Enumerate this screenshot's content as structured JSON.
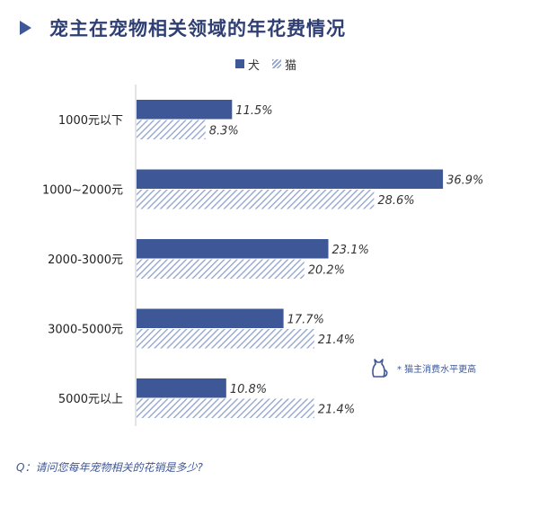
{
  "title": "宠主在宠物相关领域的年花费情况",
  "legend": {
    "dog": "犬",
    "cat": "猫"
  },
  "note": "* 猫主消费水平更高",
  "question": "Q：请问您每年宠物相关的花销是多少?",
  "colors": {
    "dog": "#3e5797",
    "cat_stripe": "#8fa1cd",
    "text": "#333333"
  },
  "chart_data": {
    "type": "bar",
    "orientation": "horizontal",
    "categories": [
      "1000元以下",
      "1000~2000元",
      "2000-3000元",
      "3000-5000元",
      "5000元以上"
    ],
    "series": [
      {
        "name": "犬",
        "values": [
          11.5,
          36.9,
          23.1,
          17.7,
          10.8
        ],
        "labels": [
          "11.5%",
          "36.9%",
          "23.1%",
          "17.7%",
          "10.8%"
        ]
      },
      {
        "name": "猫",
        "values": [
          8.3,
          28.6,
          20.2,
          21.4,
          21.4
        ],
        "labels": [
          "8.3%",
          "28.6%",
          "20.2%",
          "21.4%",
          "21.4%"
        ]
      }
    ],
    "xlim": [
      0,
      37
    ],
    "grid": false,
    "legend_position": "top"
  }
}
